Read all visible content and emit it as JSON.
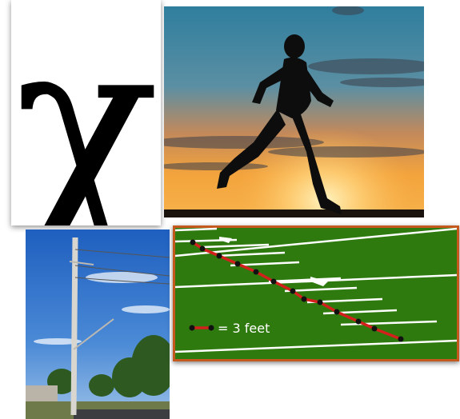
{
  "collage": {
    "symbol_panel": {
      "glyph": "χ"
    },
    "runner_panel": {
      "subject": "runner-silhouette"
    },
    "pole_panel": {
      "subject": "utility-pole"
    },
    "field_panel": {
      "legend_text": "= 3 feet",
      "colors": {
        "field": "#2f7a0e",
        "border": "#c4581d",
        "line": "#d4201c",
        "dot": "#111111"
      }
    }
  }
}
